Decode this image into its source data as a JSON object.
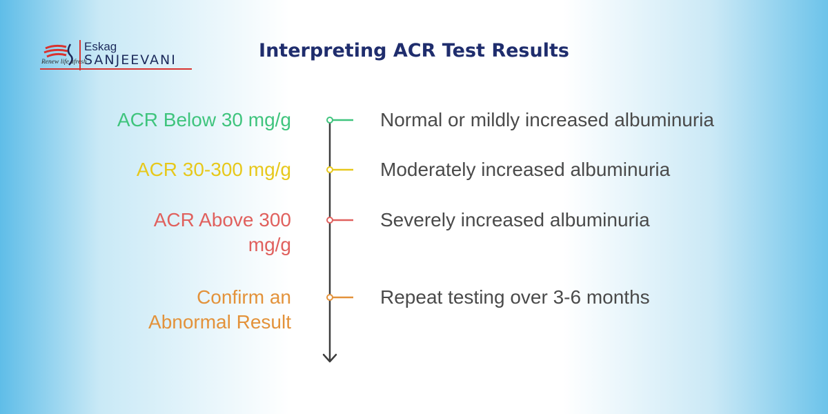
{
  "logo": {
    "line1": "Eskag",
    "line2": "SANJEEVANI",
    "tagline": "Renew life afresh"
  },
  "title": "Interpreting ACR Test Results",
  "colors": {
    "title": "#1f2d6d",
    "axis": "#3d3d3d",
    "green": "#3fc47d",
    "yellow": "#e7c81b",
    "red": "#e0605d",
    "orange": "#e3923a",
    "description": "#4a4a4a"
  },
  "steps": [
    {
      "condition": "ACR Below 30 mg/g",
      "meaning": "Normal or mildly increased albuminuria",
      "color": "#3fc47d"
    },
    {
      "condition": "ACR 30-300 mg/g",
      "meaning": "Moderately increased albuminuria",
      "color": "#e7c81b"
    },
    {
      "condition": "ACR Above 300\nmg/g",
      "meaning": "Severely increased albuminuria",
      "color": "#e0605d"
    },
    {
      "condition": "Confirm an\nAbnormal Result",
      "meaning": "Repeat testing over 3-6 months",
      "color": "#e3923a"
    }
  ]
}
